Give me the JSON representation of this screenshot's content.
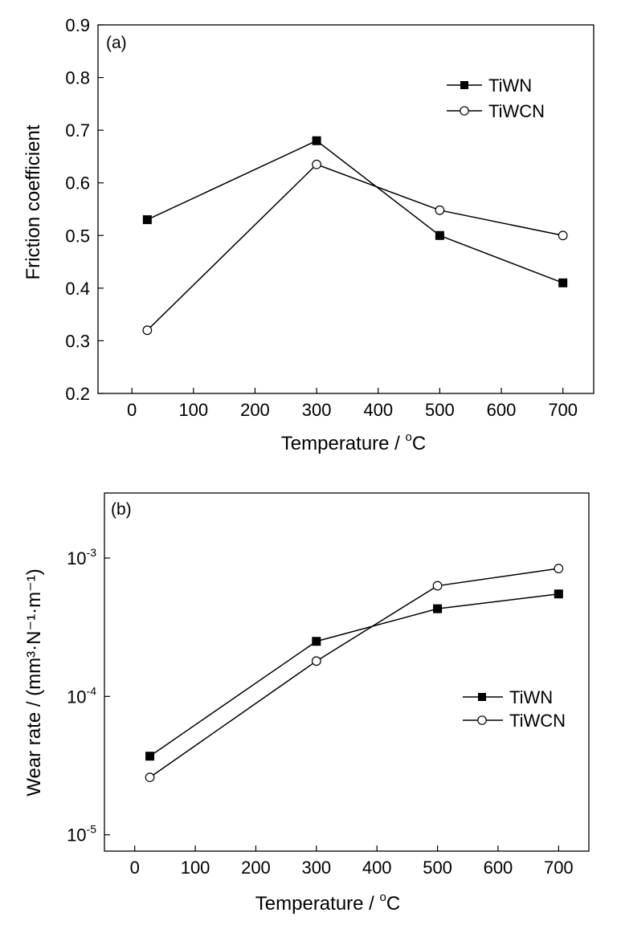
{
  "chart_data": [
    {
      "type": "line",
      "panel_label": "(a)",
      "xlabel": "Temperature / °C",
      "xlabel_main": "Temperature / ",
      "xlabel_sup": "o",
      "xlabel_unit": "C",
      "ylabel": "Friction coefficient",
      "xlim": [
        -55,
        750
      ],
      "ylim": [
        0.2,
        0.9
      ],
      "x_scale": "linear",
      "y_scale": "linear",
      "x_ticks": [
        0,
        100,
        200,
        300,
        400,
        500,
        600,
        700
      ],
      "x_tick_labels": [
        "0",
        "100",
        "200",
        "300",
        "400",
        "500",
        "600",
        "700"
      ],
      "y_ticks": [
        0.2,
        0.3,
        0.4,
        0.5,
        0.6,
        0.7,
        0.8,
        0.9
      ],
      "y_tick_labels": [
        "0.2",
        "0.3",
        "0.4",
        "0.5",
        "0.6",
        "0.7",
        "0.8",
        "0.9"
      ],
      "legend_position": "top-right",
      "grid": false,
      "series": [
        {
          "name": "TiWN",
          "marker": "filled-square",
          "x": [
            25,
            300,
            500,
            700
          ],
          "y": [
            0.53,
            0.68,
            0.5,
            0.41
          ]
        },
        {
          "name": "TiWCN",
          "marker": "open-circle",
          "x": [
            25,
            300,
            500,
            700
          ],
          "y": [
            0.32,
            0.635,
            0.548,
            0.5
          ]
        }
      ]
    },
    {
      "type": "line",
      "panel_label": "(b)",
      "xlabel": "Temperature / °C",
      "xlabel_main": "Temperature / ",
      "xlabel_sup": "o",
      "xlabel_unit": "C",
      "ylabel": "Wear rate / (mm³·N⁻¹·m⁻¹)",
      "xlim": [
        -50,
        750
      ],
      "ylim": [
        7.62e-06,
        0.00295
      ],
      "x_scale": "linear",
      "y_scale": "log",
      "x_ticks": [
        0,
        100,
        200,
        300,
        400,
        500,
        600,
        700
      ],
      "x_tick_labels": [
        "0",
        "100",
        "200",
        "300",
        "400",
        "500",
        "600",
        "700"
      ],
      "y_ticks": [
        1e-05,
        0.0001,
        0.001
      ],
      "y_tick_labels": [
        {
          "base": "10",
          "exp": "-5"
        },
        {
          "base": "10",
          "exp": "-4"
        },
        {
          "base": "10",
          "exp": "-3"
        }
      ],
      "legend_position": "middle-right",
      "grid": false,
      "series": [
        {
          "name": "TiWN",
          "marker": "filled-square",
          "x": [
            25,
            300,
            500,
            700
          ],
          "y": [
            3.7e-05,
            0.00025,
            0.00043,
            0.00055
          ]
        },
        {
          "name": "TiWCN",
          "marker": "open-circle",
          "x": [
            25,
            300,
            500,
            700
          ],
          "y": [
            2.6e-05,
            0.00018,
            0.00063,
            0.00084
          ]
        }
      ]
    }
  ]
}
